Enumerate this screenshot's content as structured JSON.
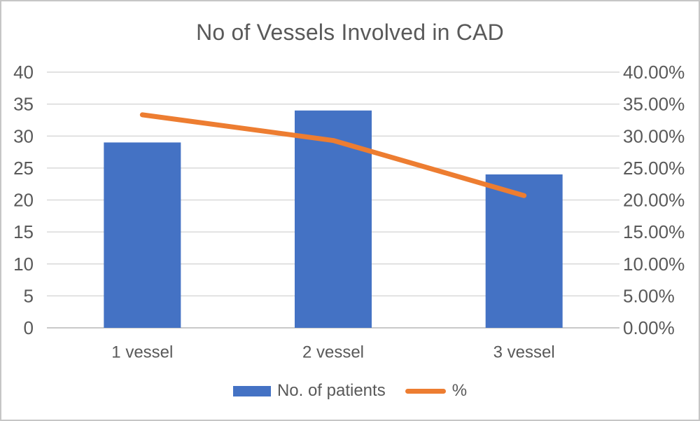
{
  "chart_data": {
    "type": "bar",
    "subtype": "combo-bar-line-dual-axis",
    "title": "No of Vessels Involved in CAD",
    "categories": [
      "1 vessel",
      "2 vessel",
      "3 vessel"
    ],
    "series": [
      {
        "name": "No. of patients",
        "type": "bar",
        "axis": "left",
        "values": [
          29,
          34,
          24
        ]
      },
      {
        "name": "%",
        "type": "line",
        "axis": "right",
        "values": [
          33.33,
          29.31,
          20.69
        ]
      }
    ],
    "left_axis": {
      "min": 0,
      "max": 40,
      "step": 5,
      "tick_labels": [
        "0",
        "5",
        "10",
        "15",
        "20",
        "25",
        "30",
        "35",
        "40"
      ]
    },
    "right_axis": {
      "min": 0,
      "max": 40,
      "step": 5,
      "tick_labels": [
        "0.00%",
        "5.00%",
        "10.00%",
        "15.00%",
        "20.00%",
        "25.00%",
        "30.00%",
        "35.00%",
        "40.00%"
      ]
    },
    "grid": true,
    "legend_position": "bottom"
  },
  "colors": {
    "bar": "#4472C4",
    "line": "#ED7D31",
    "text": "#595959",
    "gridline": "#D9D9D9",
    "baseline": "#C9C9C9",
    "frame_border": "#C6C6C6",
    "background": "#FFFFFF"
  }
}
